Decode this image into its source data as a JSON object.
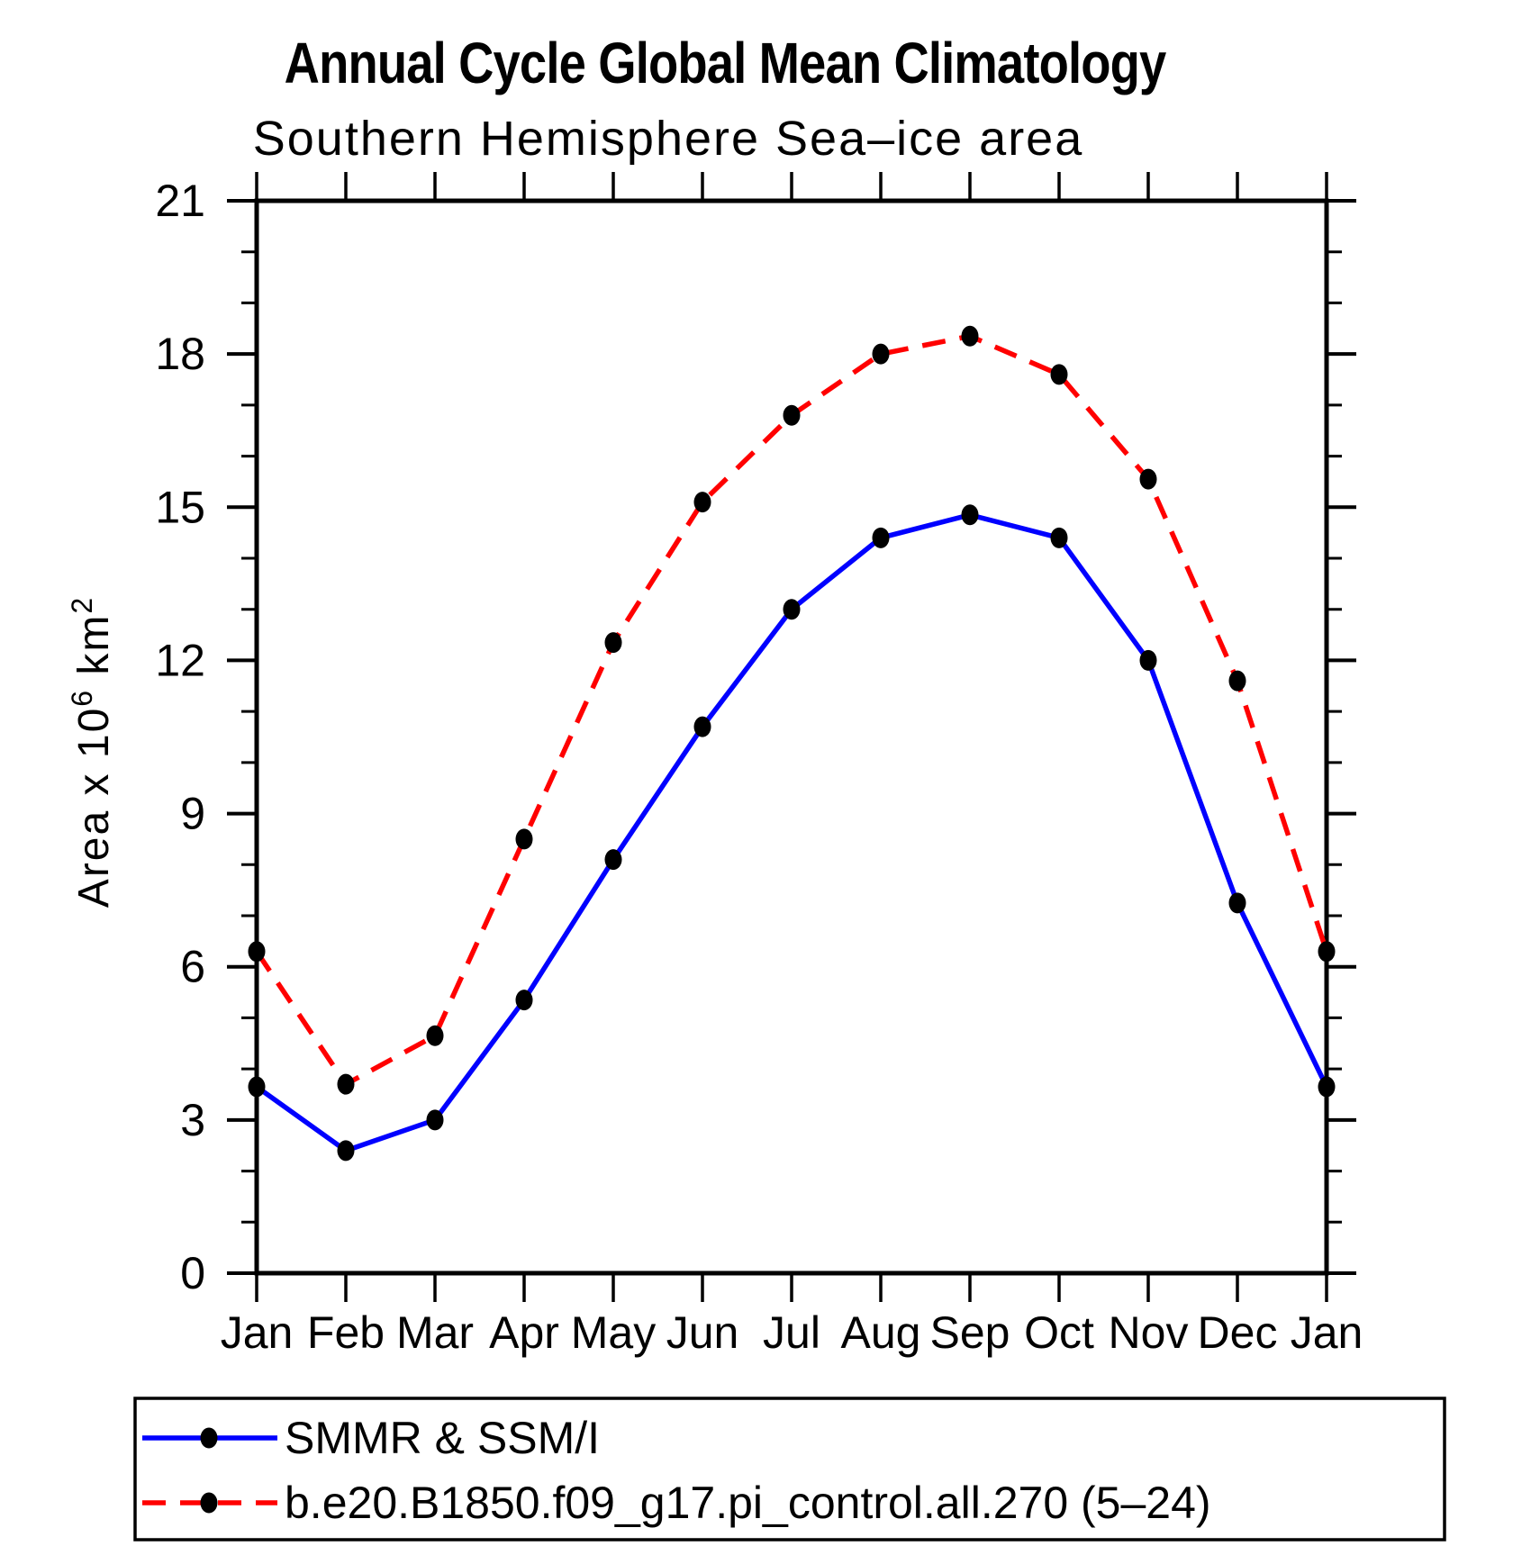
{
  "chart_data": {
    "type": "line",
    "title": "Annual Cycle Global Mean Climatology",
    "subtitle": "Southern Hemisphere Sea–ice area",
    "categories": [
      "Jan",
      "Feb",
      "Mar",
      "Apr",
      "May",
      "Jun",
      "Jul",
      "Aug",
      "Sep",
      "Oct",
      "Nov",
      "Dec",
      "Jan"
    ],
    "series": [
      {
        "name": "SMMR & SSM/I",
        "color": "#0000ff",
        "line_style": "solid",
        "marker": "filled-circle",
        "marker_color": "#000000",
        "values": [
          3.65,
          2.4,
          3.0,
          5.35,
          8.1,
          10.7,
          13.0,
          14.4,
          14.85,
          14.4,
          12.0,
          7.25,
          3.65
        ]
      },
      {
        "name": "b.e20.B1850.f09_g17.pi_control.all.270 (5–24)",
        "color": "#ff0000",
        "line_style": "dashed",
        "marker": "filled-circle",
        "marker_color": "#000000",
        "values": [
          6.3,
          3.7,
          4.65,
          8.5,
          12.35,
          15.1,
          16.8,
          18.0,
          18.35,
          17.6,
          15.55,
          11.6,
          6.3
        ]
      }
    ],
    "xlabel": "",
    "ylabel": "Area x 10^6 km^2",
    "ylabel_parts": [
      {
        "t": "Area x 10",
        "sup": false
      },
      {
        "t": "6",
        "sup": true
      },
      {
        "t": " km",
        "sup": false
      },
      {
        "t": "2",
        "sup": true
      }
    ],
    "ylim": [
      0,
      21
    ],
    "yticks": [
      0,
      3,
      6,
      9,
      12,
      15,
      18,
      21
    ],
    "ytick_step": 3,
    "ytick_minor_step": 1,
    "grid": false,
    "legend_position": "bottom-box",
    "axis_color": "#000000"
  }
}
